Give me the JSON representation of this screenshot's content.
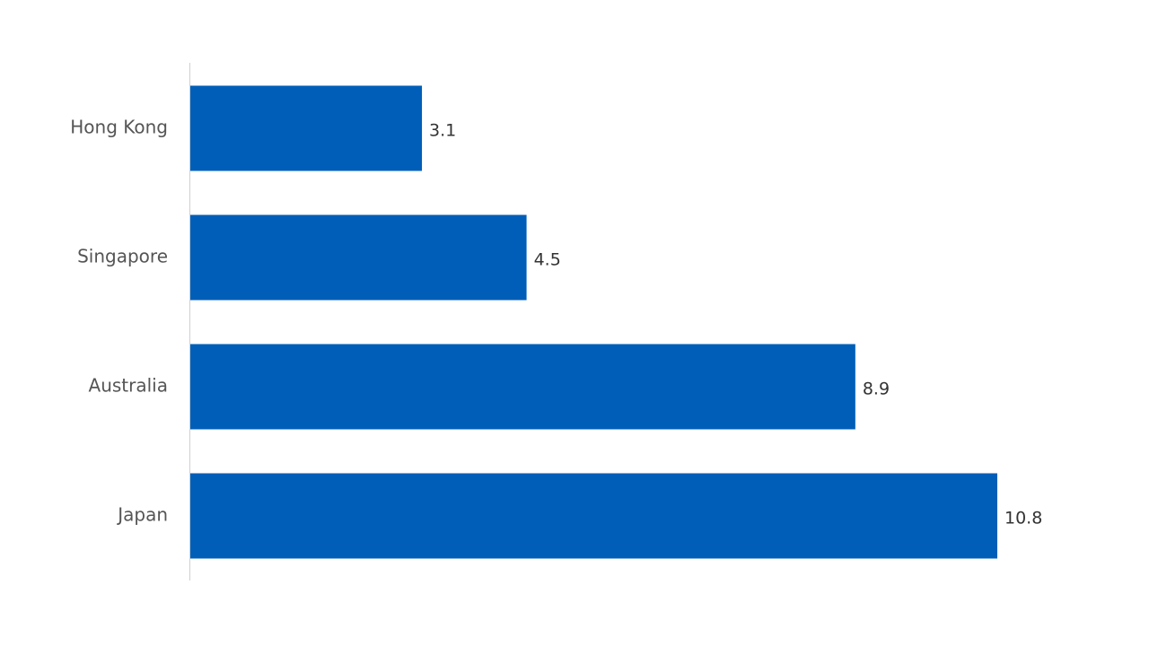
{
  "chart_data": {
    "type": "bar",
    "orientation": "horizontal",
    "categories": [
      "Hong Kong",
      "Singapore",
      "Australia",
      "Japan"
    ],
    "values": [
      3.1,
      4.5,
      8.9,
      10.8
    ],
    "color": "#005eb8"
  }
}
